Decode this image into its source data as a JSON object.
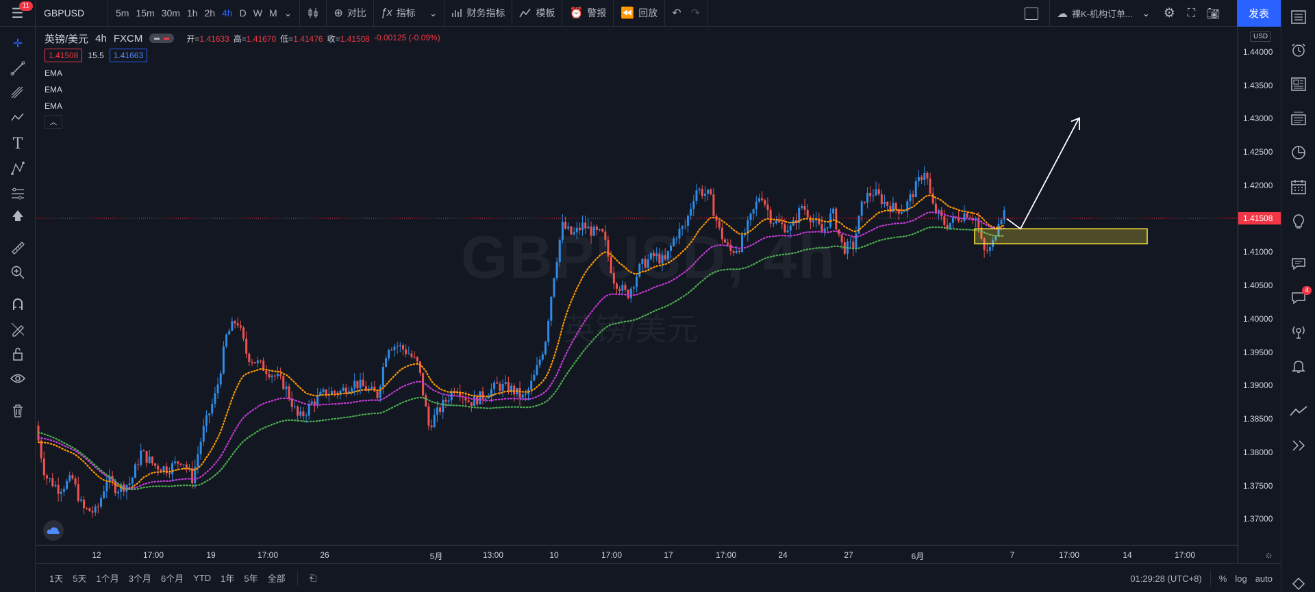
{
  "topbar": {
    "notification_count": "11",
    "symbol": "GBPUSD",
    "timeframes": [
      "5m",
      "15m",
      "30m",
      "1h",
      "2h",
      "4h",
      "D",
      "W",
      "M"
    ],
    "active_timeframe": "4h",
    "compare_label": "对比",
    "indicators_label": "指标",
    "financials_label": "财务指标",
    "templates_label": "模板",
    "alert_label": "警报",
    "replay_label": "回放",
    "layout_name": "裸K-机构订单...",
    "publish_label": "发表"
  },
  "legend": {
    "title": "英镑/美元",
    "interval": "4h",
    "exchange": "FXCM",
    "open_label": "开=",
    "open": "1.41633",
    "high_label": "高=",
    "high": "1.41670",
    "low_label": "低=",
    "low": "1.41476",
    "close_label": "收=",
    "close": "1.41508",
    "change": "-0.00125 (-0.09%)",
    "bid": "1.41508",
    "spread": "15.5",
    "ask": "1.41663",
    "indicators": [
      "EMA",
      "EMA",
      "EMA"
    ]
  },
  "watermark": {
    "symbol_line": "GBPUSD, 4h",
    "name_line": "英镑/美元"
  },
  "price_axis": {
    "currency": "USD",
    "current_price": "1.41508",
    "labels": [
      "1.44000",
      "1.43500",
      "1.43000",
      "1.42500",
      "1.42000",
      "1.41000",
      "1.40500",
      "1.40000",
      "1.39500",
      "1.39000",
      "1.38500",
      "1.38000",
      "1.37500",
      "1.37000"
    ]
  },
  "time_axis": {
    "labels": [
      "12",
      "17:00",
      "19",
      "17:00",
      "26",
      "5月",
      "13:00",
      "10",
      "17:00",
      "17",
      "17:00",
      "24",
      "27",
      "6月",
      "7",
      "17:00",
      "14",
      "17:00"
    ]
  },
  "bottombar": {
    "ranges": [
      "1天",
      "5天",
      "1个月",
      "3个月",
      "6个月",
      "YTD",
      "1年",
      "5年",
      "全部"
    ],
    "clock": "01:29:28 (UTC+8)",
    "percent_label": "%",
    "log_label": "log",
    "auto_label": "auto"
  },
  "rightbar": {
    "chat_badge": "4"
  },
  "colors": {
    "background": "#131722",
    "up": "#2e8ce6",
    "down": "#ef5350",
    "ema_fast": "#ff9800",
    "ema_mid": "#c43bd6",
    "ema_slow": "#4caf50",
    "zone_border": "#ffeb3b",
    "accent": "#2962ff"
  },
  "chart_data": {
    "type": "candlestick",
    "symbol": "GBPUSD",
    "interval": "4h",
    "ylim": [
      1.3665,
      1.4445
    ],
    "annotations": [
      "supply/demand zone 1.4112-1.4135",
      "arrow up to ~1.4300"
    ],
    "indicators": [
      "EMA",
      "EMA",
      "EMA"
    ]
  }
}
